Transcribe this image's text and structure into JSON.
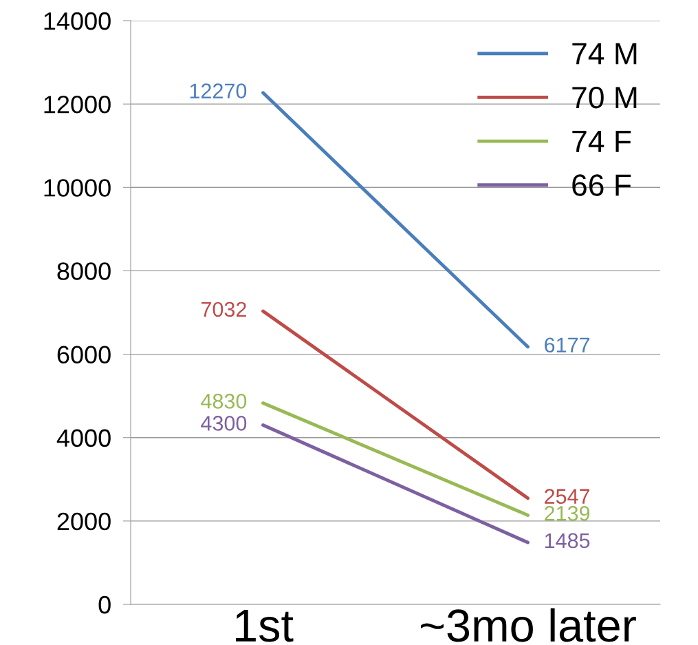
{
  "chart_data": {
    "type": "line",
    "categories": [
      "1st",
      "~3mo later"
    ],
    "series": [
      {
        "name": "74 M",
        "color": "#4a7ebb",
        "values": [
          12270,
          6177
        ]
      },
      {
        "name": "70 M",
        "color": "#be4b48",
        "values": [
          7032,
          2547
        ]
      },
      {
        "name": "74 F",
        "color": "#98b954",
        "values": [
          4830,
          2139
        ]
      },
      {
        "name": "66 F",
        "color": "#7d60a0",
        "values": [
          4300,
          1485
        ]
      }
    ],
    "ylim": [
      0,
      14000
    ],
    "yticks": [
      0,
      2000,
      4000,
      6000,
      8000,
      10000,
      12000,
      14000
    ],
    "grid": "y",
    "legend": "top right",
    "data_labels": true,
    "marker": "none",
    "line_style": "solid"
  }
}
